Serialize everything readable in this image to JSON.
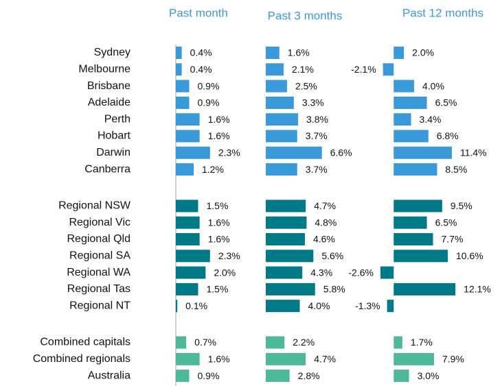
{
  "chart_data": {
    "type": "bar",
    "categories": [
      "Sydney",
      "Melbourne",
      "Brisbane",
      "Adelaide",
      "Perth",
      "Hobart",
      "Darwin",
      "Canberra",
      "Regional NSW",
      "Regional Vic",
      "Regional Qld",
      "Regional SA",
      "Regional WA",
      "Regional Tas",
      "Regional NT",
      "Combined capitals",
      "Combined regionals",
      "Australia"
    ],
    "colors": [
      "#3a9ad9",
      "#3a9ad9",
      "#3a9ad9",
      "#3a9ad9",
      "#3a9ad9",
      "#3a9ad9",
      "#3a9ad9",
      "#3a9ad9",
      "#007a87",
      "#007a87",
      "#007a87",
      "#007a87",
      "#007a87",
      "#007a87",
      "#007a87",
      "#4db89a",
      "#4db89a",
      "#4db89a"
    ],
    "header_color": "#3a9ad9",
    "series": [
      {
        "name": "Past month",
        "xlim": [
          0,
          6
        ],
        "values": [
          0.4,
          0.4,
          0.9,
          0.9,
          1.6,
          1.6,
          2.3,
          1.2,
          1.5,
          1.6,
          1.6,
          2.3,
          2.0,
          1.5,
          0.1,
          0.7,
          1.6,
          0.9
        ],
        "value_labels": [
          "0.4%",
          "0.4%",
          "0.9%",
          "0.9%",
          "1.6%",
          "1.6%",
          "2.3%",
          "1.2%",
          "1.5%",
          "1.6%",
          "1.6%",
          "2.3%",
          "2.0%",
          "1.5%",
          "0.1%",
          "0.7%",
          "1.6%",
          "0.9%"
        ]
      },
      {
        "name": "Past 3 months",
        "xlim": [
          0,
          10.5
        ],
        "values": [
          1.6,
          2.1,
          2.5,
          3.3,
          3.8,
          3.7,
          6.6,
          3.7,
          4.7,
          4.8,
          4.6,
          5.6,
          4.3,
          5.8,
          4.0,
          2.2,
          4.7,
          2.8
        ],
        "value_labels": [
          "1.6%",
          "2.1%",
          "2.5%",
          "3.3%",
          "3.8%",
          "3.7%",
          "6.6%",
          "3.7%",
          "4.7%",
          "4.8%",
          "4.6%",
          "5.6%",
          "4.3%",
          "5.8%",
          "4.0%",
          "2.2%",
          "4.7%",
          "2.8%"
        ]
      },
      {
        "name": "Past 12 months",
        "xlim": [
          -3,
          14.5
        ],
        "values": [
          2.0,
          -2.1,
          4.0,
          6.5,
          3.4,
          6.8,
          11.4,
          8.5,
          9.5,
          6.5,
          7.7,
          10.6,
          -2.6,
          12.1,
          -1.3,
          1.7,
          7.9,
          3.0
        ],
        "value_labels": [
          "2.0%",
          "-2.1%",
          "4.0%",
          "6.5%",
          "3.4%",
          "6.8%",
          "11.4%",
          "8.5%",
          "9.5%",
          "6.5%",
          "7.7%",
          "10.6%",
          "-2.6%",
          "12.1%",
          "-1.3%",
          "1.7%",
          "7.9%",
          "3.0%"
        ]
      }
    ]
  }
}
